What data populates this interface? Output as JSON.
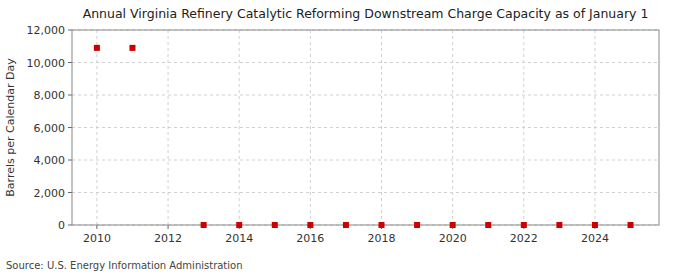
{
  "chart_data": {
    "type": "scatter",
    "title": "Annual Virginia Refinery Catalytic Reforming Downstream Charge Capacity as of January 1",
    "y_label": "Barrels per Calendar Day",
    "annotations": [
      "Source: U.S. Energy Information Administration"
    ],
    "x": [
      2010,
      2011,
      2013,
      2014,
      2015,
      2016,
      2017,
      2018,
      2019,
      2020,
      2021,
      2022,
      2023,
      2024,
      2025
    ],
    "values": [
      10900,
      10900,
      0,
      0,
      0,
      0,
      0,
      0,
      0,
      0,
      0,
      0,
      0,
      0,
      0
    ],
    "color": "#cc0000",
    "marker": "square",
    "xlim": [
      2009.3,
      2025.8
    ],
    "ylim": [
      0,
      12000
    ],
    "xticks": [
      2010,
      2012,
      2014,
      2016,
      2018,
      2020,
      2022,
      2024
    ],
    "yticks": [
      0,
      {
        "value": 2000,
        "label": "2,000"
      },
      {
        "value": 4000,
        "label": "4,000"
      },
      {
        "value": 6000,
        "label": "6,000"
      },
      {
        "value": 8000,
        "label": "8,000"
      },
      {
        "value": 10000,
        "label": "10,000"
      },
      {
        "value": 12000,
        "label": "12,000"
      }
    ],
    "grid": true
  }
}
